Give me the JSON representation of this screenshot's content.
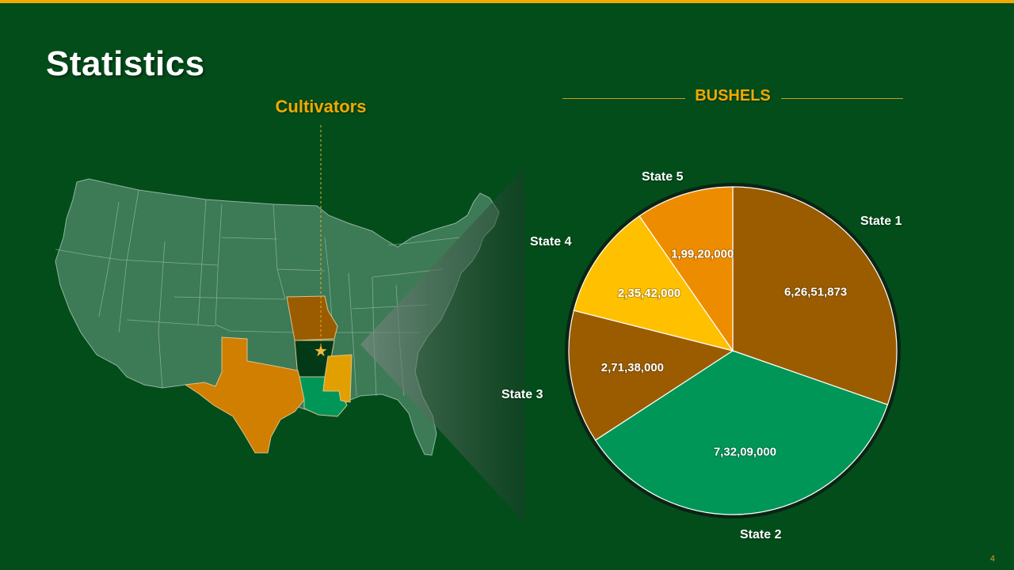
{
  "slide": {
    "title": "Statistics",
    "page_number": "4"
  },
  "map": {
    "label": "Cultivators",
    "marker_icon": "star-icon",
    "highlight_colors": {
      "missouri": "#9b5c00",
      "arkansas": "#023a18",
      "texas": "#d17f00",
      "louisiana": "#009658",
      "mississippi": "#e2a000"
    },
    "land_color": "#3d7a56"
  },
  "chart_data": {
    "type": "pie",
    "title": "BUSHELS",
    "slices": [
      {
        "label": "State 1",
        "value": 62651873,
        "display": "6,26,51,873",
        "color": "#9b5c00"
      },
      {
        "label": "State 2",
        "value": 73209000,
        "display": "7,32,09,000",
        "color": "#009658"
      },
      {
        "label": "State 3",
        "value": 27138000,
        "display": "2,71,38,000",
        "color": "#9b5c00"
      },
      {
        "label": "State 4",
        "value": 23542000,
        "display": "2,35,42,000",
        "color": "#ffc000"
      },
      {
        "label": "State 5",
        "value": 19920000,
        "display": "1,99,20,000",
        "color": "#ee8c00"
      }
    ],
    "legend": "none"
  }
}
